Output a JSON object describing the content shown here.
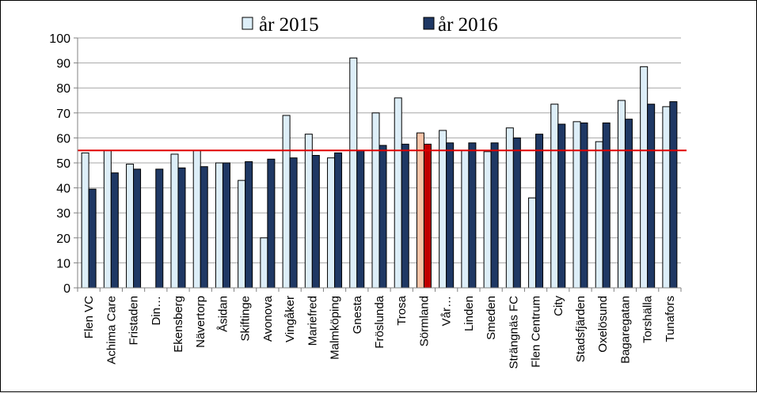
{
  "chart_data": {
    "type": "bar",
    "categories": [
      "Flen VC",
      "Achima Care",
      "Fristaden",
      "Din…",
      "Ekensberg",
      "Nävertorp",
      "Åsidan",
      "Skiftinge",
      "Avonova",
      "Vingåker",
      "Mariefred",
      "Malmköping",
      "Gnesta",
      "Fröslunda",
      "Trosa",
      "Sörmland",
      "Vår…",
      "Linden",
      "Smeden",
      "Strängnäs FC",
      "Flen Centrum",
      "City",
      "Stadsfjärden",
      "Oxelösund",
      "Bagaregatan",
      "Torshälla",
      "Tunafors"
    ],
    "series": [
      {
        "name": "år 2015",
        "values": [
          54,
          55,
          49.5,
          null,
          53.5,
          55,
          50,
          43,
          20,
          69,
          61.5,
          52,
          92,
          70,
          76,
          62,
          63,
          55,
          54.5,
          64,
          36,
          73.5,
          66.5,
          58.5,
          75,
          88.5,
          72.5
        ]
      },
      {
        "name": "år 2016",
        "values": [
          39.5,
          46,
          47.5,
          47.5,
          48,
          48.5,
          50,
          50.5,
          51.5,
          52,
          53,
          54,
          55,
          57,
          57.5,
          57.5,
          58,
          58,
          58,
          60,
          61.5,
          65.5,
          66,
          66,
          67.5,
          73.5,
          74.5
        ]
      }
    ],
    "colors": {
      "2015": "#ddeef8",
      "2016": "#1f3864",
      "highlight_2015": "#f8c4a8",
      "highlight_2016": "#c00000",
      "reference_line": "#e00000"
    },
    "highlight_category": "Sörmland",
    "reference_line_value": 55,
    "yticks": [
      "0",
      "10",
      "20",
      "30",
      "40",
      "50",
      "60",
      "70",
      "80",
      "90",
      "100"
    ],
    "ylim": [
      0,
      100
    ],
    "grid": true,
    "legend_position": "top-center",
    "title": "",
    "xlabel": "",
    "ylabel": ""
  }
}
